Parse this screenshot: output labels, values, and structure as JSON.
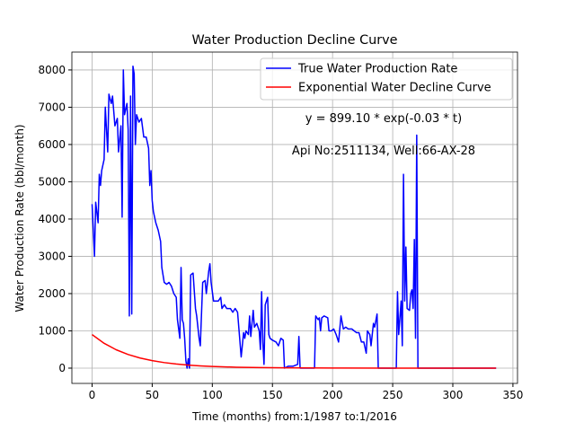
{
  "chart_data": {
    "type": "line",
    "title": "Water Production Decline Curve",
    "xlabel": "Time (months) from:1/1987 to:1/2016",
    "ylabel": "Water Production Rate (bbl/month)",
    "annotations": [
      "y = 899.10 * exp(-0.03 * t)",
      "Api No:2511134, Well:66-AX-28"
    ],
    "xlim": [
      -16.8,
      353.8
    ],
    "ylim": [
      -410,
      8480
    ],
    "xticks": [
      0,
      50,
      100,
      150,
      200,
      250,
      300,
      350
    ],
    "yticks": [
      0,
      1000,
      2000,
      3000,
      4000,
      5000,
      6000,
      7000,
      8000
    ],
    "grid": true,
    "legend": "upper right",
    "series": [
      {
        "name": "True Water Production Rate",
        "color": "#0000ff",
        "x": [
          0,
          2,
          3,
          5,
          6,
          7,
          8,
          10,
          11,
          13,
          14,
          16,
          17,
          19,
          21,
          22,
          24,
          25,
          26,
          27,
          29,
          30,
          31,
          32,
          33,
          34,
          35,
          36,
          37,
          39,
          41,
          43,
          45,
          47,
          48,
          49,
          50,
          51,
          53,
          55,
          57,
          58,
          60,
          62,
          64,
          66,
          68,
          70,
          71,
          73,
          74,
          75,
          76,
          77,
          78,
          79,
          80,
          81,
          82,
          84,
          86,
          87,
          89,
          90,
          92,
          94,
          95,
          97,
          98,
          99,
          101,
          103,
          105,
          107,
          108,
          110,
          112,
          115,
          117,
          119,
          121,
          122,
          124,
          126,
          127,
          128,
          130,
          131,
          132,
          134,
          135,
          137,
          139,
          140,
          141,
          142,
          143,
          144,
          146,
          147,
          148,
          150,
          153,
          155,
          157,
          159,
          160,
          163,
          167,
          171,
          172,
          173,
          185,
          186,
          188,
          189,
          190,
          191,
          193,
          196,
          197,
          199,
          201,
          203,
          205,
          207,
          209,
          211,
          213,
          216,
          218,
          220,
          222,
          224,
          226,
          228,
          229,
          231,
          232,
          234,
          235,
          237,
          238,
          253,
          254,
          255,
          257,
          258,
          259,
          260,
          261,
          262,
          264,
          265,
          266,
          267,
          268,
          269,
          270,
          271,
          336
        ],
        "values": [
          4400,
          3000,
          4450,
          3900,
          5200,
          4900,
          5300,
          5600,
          7000,
          5800,
          7350,
          7100,
          7300,
          6500,
          6700,
          5800,
          6500,
          4050,
          8000,
          6800,
          7100,
          6400,
          1400,
          7300,
          1450,
          8100,
          7900,
          6000,
          6800,
          6600,
          6700,
          6200,
          6200,
          5900,
          4900,
          5300,
          4500,
          4200,
          3900,
          3700,
          3400,
          2700,
          2300,
          2250,
          2300,
          2200,
          2000,
          1900,
          1300,
          800,
          2700,
          1300,
          1200,
          800,
          200,
          0,
          250,
          0,
          2500,
          2550,
          1600,
          1400,
          800,
          600,
          2300,
          2350,
          2000,
          2600,
          2800,
          2300,
          1800,
          1800,
          1800,
          1900,
          1600,
          1700,
          1600,
          1600,
          1500,
          1600,
          1500,
          1100,
          300,
          950,
          800,
          1000,
          900,
          1400,
          850,
          1550,
          1100,
          1200,
          1000,
          500,
          2050,
          700,
          100,
          1700,
          1900,
          900,
          800,
          750,
          700,
          600,
          800,
          750,
          0,
          50,
          50,
          100,
          850,
          0,
          0,
          1400,
          1300,
          1350,
          1000,
          1350,
          1400,
          1350,
          1000,
          1000,
          1050,
          900,
          700,
          1400,
          1050,
          1100,
          1050,
          1050,
          1000,
          950,
          950,
          700,
          700,
          400,
          1000,
          900,
          600,
          1200,
          1100,
          1450,
          0,
          0,
          2050,
          900,
          1800,
          600,
          5200,
          1800,
          3250,
          1600,
          1550,
          2000,
          2100,
          1600,
          3450,
          800,
          6250,
          0,
          0
        ]
      },
      {
        "name": "Exponential Water Decline Curve",
        "color": "#ff0000",
        "x": [
          0,
          10,
          20,
          30,
          40,
          50,
          60,
          70,
          80,
          90,
          100,
          120,
          140,
          160,
          200,
          250,
          300,
          336
        ],
        "values": [
          899.1,
          666.1,
          493.4,
          365.6,
          270.8,
          200.6,
          148.6,
          110.1,
          81.6,
          60.4,
          44.8,
          24.6,
          13.5,
          7.4,
          2.2,
          0.5,
          0.1,
          0
        ]
      }
    ]
  }
}
